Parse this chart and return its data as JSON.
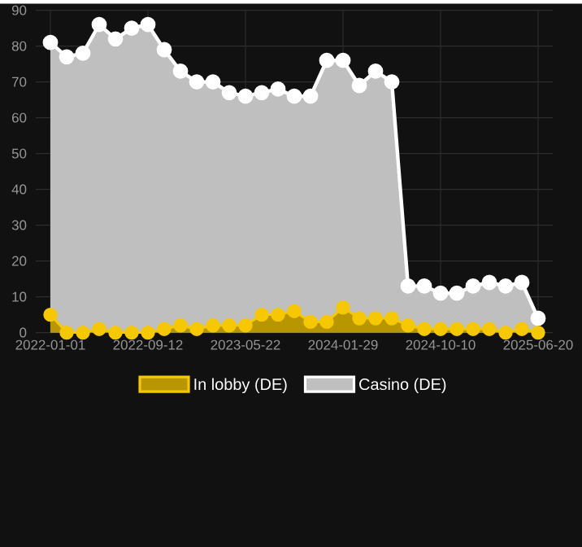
{
  "chart_data": {
    "type": "area",
    "categories": [
      "2022-01-01",
      null,
      null,
      null,
      null,
      null,
      "2022-09-12",
      null,
      null,
      null,
      null,
      null,
      "2023-05-22",
      null,
      null,
      null,
      null,
      null,
      "2024-01-29",
      null,
      null,
      null,
      null,
      null,
      "2024-10-10",
      null,
      null,
      null,
      null,
      null,
      "2025-06-20"
    ],
    "series": [
      {
        "name": "In lobby (DE)",
        "color": "#f5c800",
        "values": [
          5,
          0,
          0,
          1,
          0,
          0,
          0,
          1,
          2,
          1,
          2,
          2,
          2,
          5,
          5,
          6,
          3,
          3,
          7,
          4,
          4,
          4,
          2,
          1,
          1,
          1,
          1,
          1,
          0,
          1,
          0
        ]
      },
      {
        "name": "Casino (DE)",
        "color": "#ffffff",
        "values": [
          81,
          77,
          78,
          86,
          82,
          85,
          86,
          79,
          73,
          70,
          70,
          67,
          66,
          67,
          68,
          66,
          66,
          76,
          76,
          69,
          73,
          70,
          13,
          13,
          11,
          11,
          13,
          14,
          13,
          14,
          4
        ]
      }
    ],
    "ylim": [
      0,
      90
    ],
    "yticks": [
      0,
      10,
      20,
      30,
      40,
      50,
      60,
      70,
      80,
      90
    ],
    "grid": true,
    "legend": "bottom",
    "marker": "circle"
  }
}
